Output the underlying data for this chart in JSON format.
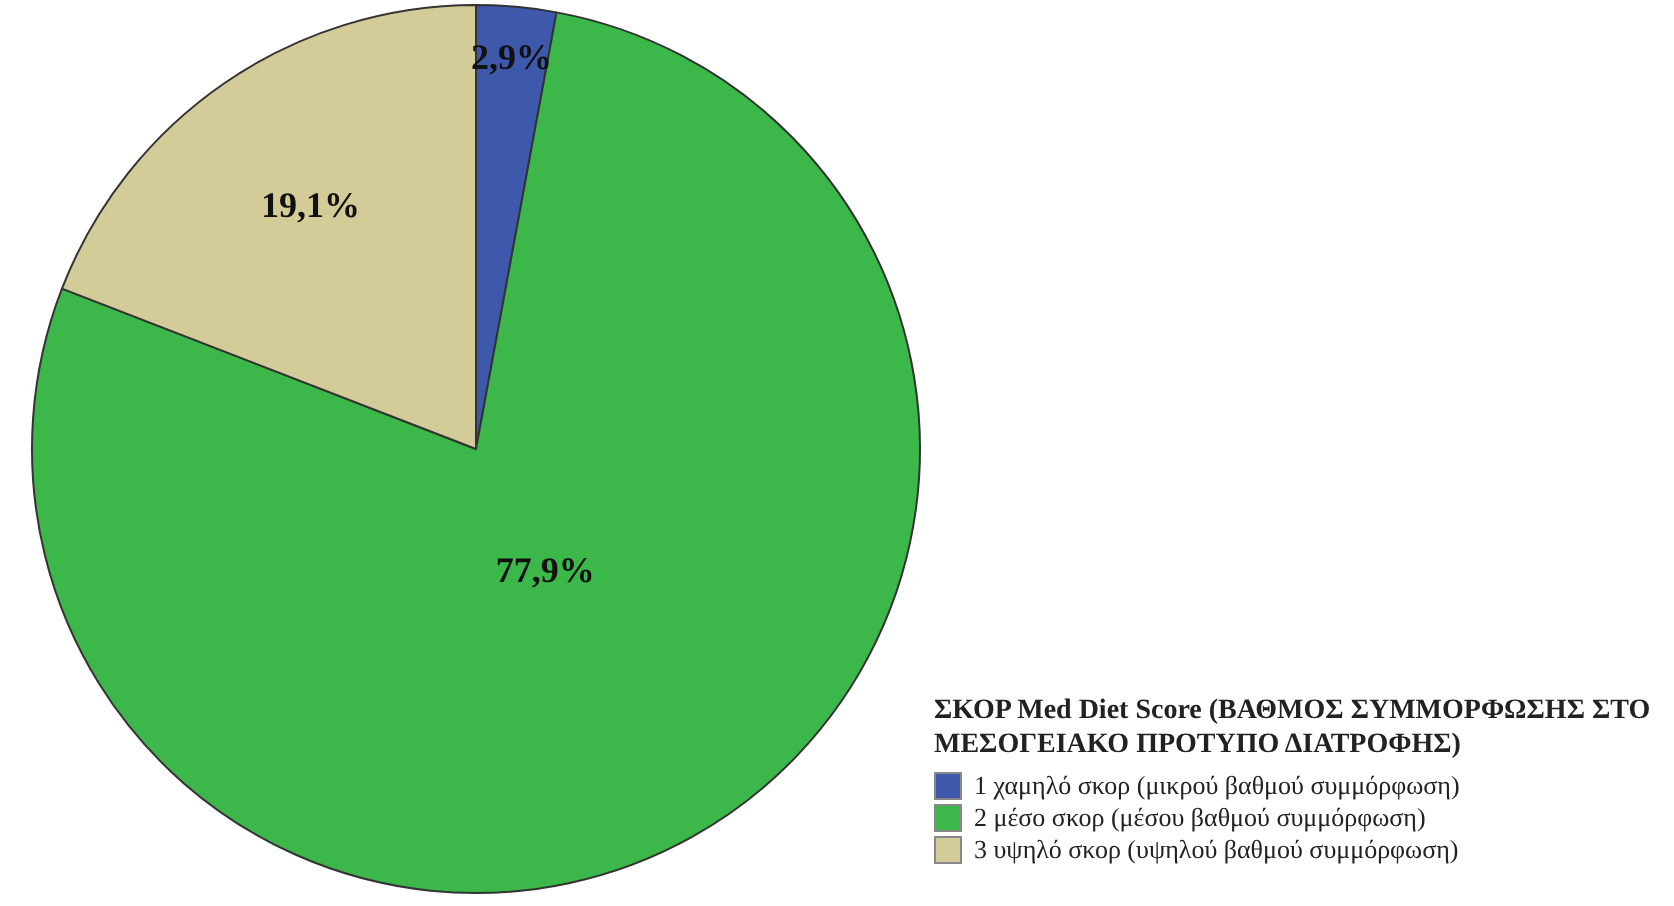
{
  "chart_data": {
    "type": "pie",
    "legend_title": "ΣΚΟΡ Med Diet Score (ΒΑΘΜΟΣ ΣΥΜΜΟΡΦΩΣΗΣ ΣΤΟ ΜΕΣΟΓΕΙΑΚΟ ΠΡΟΤΥΠΟ ΔΙΑΤΡΟΦΗΣ)",
    "categories": [
      "1 χαμηλό σκορ (μικρού βαθμού συμμόρφωση)",
      "2 μέσο σκορ (μέσου βαθμού συμμόρφωση)",
      "3 υψηλό σκορ (υψηλού βαθμού συμμόρφωση)"
    ],
    "values": [
      2.9,
      77.9,
      19.1
    ],
    "value_labels": [
      "2,9%",
      "77,9%",
      "19,1%"
    ],
    "colors": [
      "#3e58ac",
      "#3cb84a",
      "#d4cc98"
    ],
    "legend": "bottom right"
  }
}
